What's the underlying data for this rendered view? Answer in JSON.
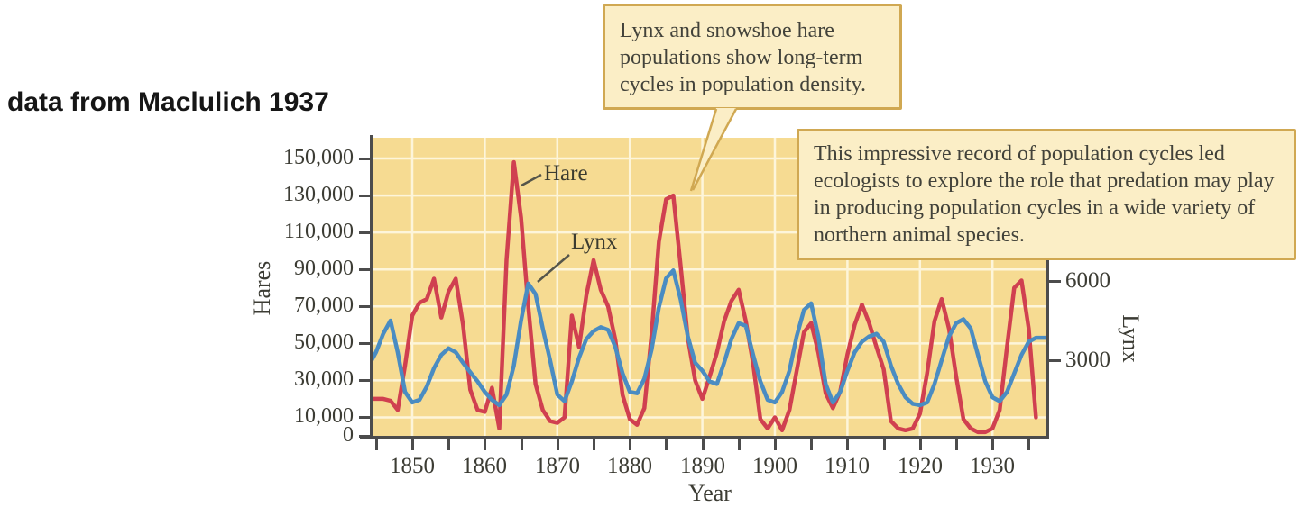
{
  "caption": "data from Maclulich 1937",
  "callouts": {
    "box1": "Lynx and snowshoe hare populations show long-term cycles in population density.",
    "box2": "This impressive record of population cycles led ecologists to explore the role that predation may play in producing population cycles in a wide variety of northern animal species."
  },
  "chart_data": {
    "type": "line",
    "title": "",
    "xlabel": "Year",
    "ylabel_left": "Hares",
    "ylabel_right": "Lynx",
    "x_range": [
      1844,
      1937
    ],
    "ylim_left": [
      0,
      155000
    ],
    "ylim_right": [
      0,
      6600
    ],
    "grid": "white gridlines on tan background, vertical each decade, horizontal at left-axis ticks",
    "legend_position": "labels annotated inside plot",
    "y_ticks_left": {
      "values": [
        0,
        10000,
        30000,
        50000,
        70000,
        90000,
        110000,
        130000,
        150000
      ],
      "labels": [
        "0",
        "10,000",
        "30,000",
        "50,000",
        "70,000",
        "90,000",
        "110,000",
        "130,000",
        "150,000"
      ]
    },
    "y_ticks_right": {
      "values": [
        3000,
        6000
      ],
      "labels": [
        "3000",
        "6000"
      ]
    },
    "x_ticks": {
      "all": [
        1845,
        1850,
        1855,
        1860,
        1865,
        1870,
        1875,
        1880,
        1885,
        1890,
        1895,
        1900,
        1905,
        1910,
        1915,
        1920,
        1925,
        1930,
        1935
      ],
      "labeled": [
        1850,
        1860,
        1870,
        1880,
        1890,
        1900,
        1910,
        1920,
        1930
      ]
    },
    "years": [
      1844,
      1845,
      1846,
      1847,
      1848,
      1849,
      1850,
      1851,
      1852,
      1853,
      1854,
      1855,
      1856,
      1857,
      1858,
      1859,
      1860,
      1861,
      1862,
      1863,
      1864,
      1865,
      1866,
      1867,
      1868,
      1869,
      1870,
      1871,
      1872,
      1873,
      1874,
      1875,
      1876,
      1877,
      1878,
      1879,
      1880,
      1881,
      1882,
      1883,
      1884,
      1885,
      1886,
      1887,
      1888,
      1889,
      1890,
      1891,
      1892,
      1893,
      1894,
      1895,
      1896,
      1897,
      1898,
      1899,
      1900,
      1901,
      1902,
      1903,
      1904,
      1905,
      1906,
      1907,
      1908,
      1909,
      1910,
      1911,
      1912,
      1913,
      1914,
      1915,
      1916,
      1917,
      1918,
      1919,
      1920,
      1921,
      1922,
      1923,
      1924,
      1925,
      1926,
      1927,
      1928,
      1929,
      1930,
      1931,
      1932,
      1933,
      1934,
      1935,
      1936
    ],
    "series": [
      {
        "name": "Hare",
        "axis": "left",
        "color": "#d04050",
        "values": [
          20000,
          20000,
          20000,
          19000,
          14000,
          38000,
          65000,
          72000,
          74000,
          85000,
          64000,
          78000,
          85000,
          60000,
          25000,
          14000,
          13000,
          26000,
          4000,
          95000,
          148000,
          118000,
          70000,
          28000,
          14000,
          8000,
          7000,
          10000,
          65000,
          48000,
          76000,
          95000,
          79000,
          70000,
          52000,
          22000,
          9000,
          6000,
          15000,
          55000,
          105000,
          128000,
          130000,
          92000,
          53000,
          30000,
          20000,
          32000,
          45000,
          62000,
          73000,
          79000,
          62000,
          39000,
          9000,
          4000,
          10000,
          3000,
          14000,
          35000,
          56000,
          61000,
          45000,
          23000,
          15000,
          24000,
          44000,
          60000,
          71000,
          61000,
          48000,
          36000,
          8000,
          4000,
          3000,
          4000,
          12000,
          34000,
          62000,
          74000,
          58000,
          32000,
          9000,
          4000,
          2000,
          2000,
          4000,
          14000,
          48000,
          80000,
          84000,
          58000,
          10000
        ]
      },
      {
        "name": "Lynx",
        "axis": "right",
        "color": "#4a8cc2",
        "values": [
          2800,
          3300,
          4000,
          4500,
          3300,
          1800,
          1400,
          1500,
          2000,
          2700,
          3200,
          3450,
          3300,
          2900,
          2550,
          2200,
          1800,
          1500,
          1300,
          1700,
          2800,
          4500,
          5900,
          5500,
          4200,
          3000,
          1700,
          1450,
          2200,
          3100,
          3800,
          4100,
          4250,
          4150,
          3500,
          2500,
          1800,
          1750,
          2300,
          3400,
          5000,
          6100,
          6400,
          5300,
          3900,
          2900,
          2600,
          2200,
          2100,
          2900,
          3800,
          4400,
          4300,
          3200,
          2200,
          1500,
          1400,
          1800,
          2600,
          3900,
          4900,
          5150,
          3900,
          2100,
          1400,
          1800,
          2600,
          3300,
          3700,
          3900,
          4000,
          3700,
          2800,
          2100,
          1600,
          1350,
          1300,
          1400,
          2100,
          3000,
          3900,
          4400,
          4550,
          4200,
          3200,
          2200,
          1600,
          1450,
          1800,
          2500,
          3200,
          3700,
          3850
        ]
      }
    ],
    "colors": {
      "plot_background": "#f6db92",
      "gridline": "#fdf5da",
      "hare_line": "#d04050",
      "lynx_line": "#4a8cc2",
      "callout_fill": "#fbeec6",
      "callout_border": "#d0a852",
      "axis": "#4c4c4c",
      "text": "#3c3c34"
    }
  }
}
